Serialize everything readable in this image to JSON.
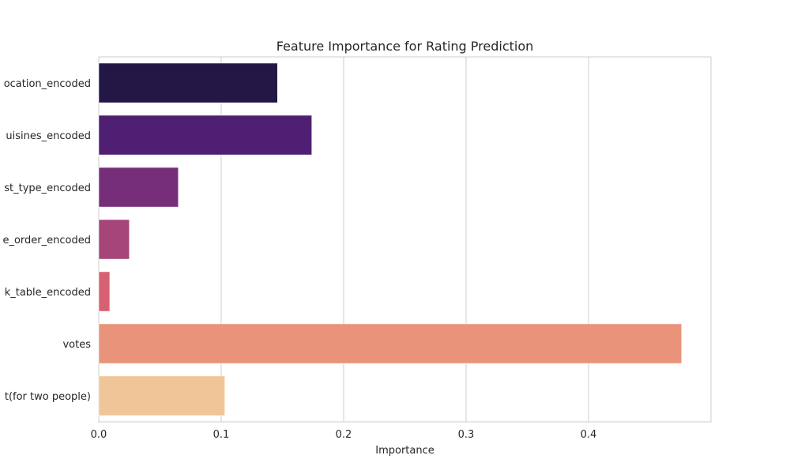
{
  "chart_data": {
    "type": "bar",
    "orientation": "horizontal",
    "title": "Feature Importance for Rating Prediction",
    "xlabel": "Importance",
    "ylabel": "",
    "xlim": [
      0,
      0.5
    ],
    "xticks": [
      "0.0",
      "0.1",
      "0.2",
      "0.3",
      "0.4"
    ],
    "grid": true,
    "categories": [
      "ocation_encoded",
      "uisines_encoded",
      "st_type_encoded",
      "e_order_encoded",
      "k_table_encoded",
      "votes",
      "t(for two people)"
    ],
    "values": [
      0.146,
      0.174,
      0.065,
      0.025,
      0.009,
      0.476,
      0.103
    ],
    "colors": [
      "#231845",
      "#4f1f73",
      "#772e7a",
      "#a6457a",
      "#d86073",
      "#e8937a",
      "#f0c597"
    ]
  }
}
